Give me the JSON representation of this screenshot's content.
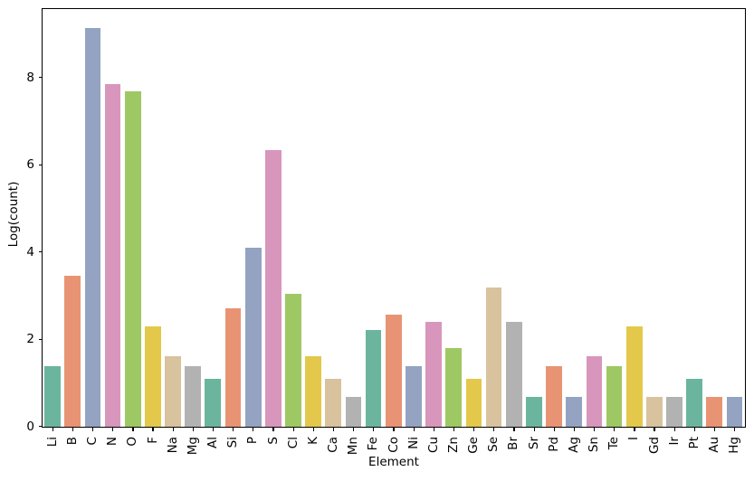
{
  "chart_data": {
    "type": "bar",
    "title": "",
    "xlabel": "Element",
    "ylabel": "Log(count)",
    "categories": [
      "Li",
      "B",
      "C",
      "N",
      "O",
      "F",
      "Na",
      "Mg",
      "Al",
      "Si",
      "P",
      "S",
      "Cl",
      "K",
      "Ca",
      "Mn",
      "Fe",
      "Co",
      "Ni",
      "Cu",
      "Zn",
      "Ge",
      "Se",
      "Br",
      "Sr",
      "Pd",
      "Ag",
      "Sn",
      "Te",
      "I",
      "Gd",
      "Ir",
      "Pt",
      "Au",
      "Hg"
    ],
    "values": [
      1.39,
      3.47,
      9.13,
      7.86,
      7.69,
      2.3,
      1.61,
      1.39,
      1.1,
      2.71,
      4.11,
      6.34,
      3.04,
      1.61,
      1.1,
      0.69,
      2.21,
      2.57,
      1.39,
      2.4,
      1.8,
      1.1,
      3.19,
      2.4,
      0.69,
      1.39,
      0.69,
      1.61,
      1.39,
      2.3,
      0.69,
      0.69,
      1.1,
      0.69,
      0.69
    ],
    "yticks": [
      0,
      2,
      4,
      6,
      8
    ],
    "ylim": [
      0,
      9.57
    ],
    "grid": false,
    "legend": null,
    "xtick_rotation": 90,
    "palette": [
      "#6bb59e",
      "#e89474",
      "#93a3c1",
      "#d896bc",
      "#9ec864",
      "#e3c84b",
      "#d9c29e",
      "#b2b2b2"
    ]
  }
}
